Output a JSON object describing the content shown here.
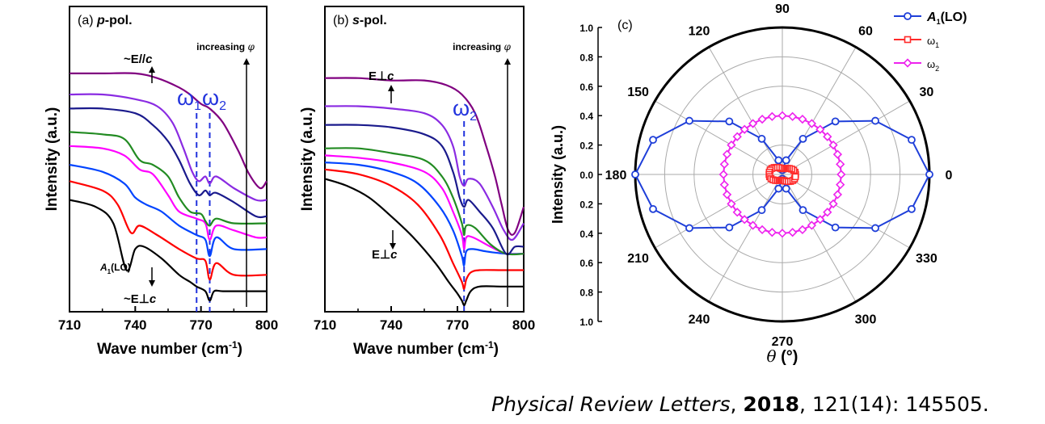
{
  "figure": {
    "citation": {
      "journal": "Physical Review Letters",
      "sep1": ", ",
      "year": "2018",
      "sep2": ", ",
      "rest": "121(14): 145505."
    }
  },
  "chart_data": [
    {
      "id": "a",
      "type": "line",
      "panel_label": "(a)",
      "title": "p-pol.",
      "xlabel": "Wave number (cm",
      "xlabel_sup": "-1",
      "xlabel_end": ")",
      "ylabel": "Intensity (a.u.)",
      "xlim": [
        710,
        800
      ],
      "xticks": [
        710,
        740,
        770,
        800
      ],
      "ylim": [
        0,
        1
      ],
      "yticks_shown": false,
      "vlines": [
        {
          "x": 768,
          "label": "ω",
          "sub": "1",
          "color": "#2233dd"
        },
        {
          "x": 774,
          "label": "ω",
          "sub": "2",
          "color": "#2233dd"
        }
      ],
      "annotations": {
        "top": "~E//c",
        "bottom": "~E⊥c",
        "mode": "A",
        "mode_sub": "1",
        "mode_end": "(LO)",
        "arrow_label": "increasing φ"
      },
      "series_colors": [
        "#000000",
        "#ff0000",
        "#0044ff",
        "#ff00ff",
        "#228b22",
        "#1a1a8c",
        "#8a2be2",
        "#800080"
      ],
      "series": [
        {
          "x": [
            710,
            722,
            730,
            736,
            740,
            744,
            752,
            760,
            765,
            768,
            772,
            774,
            776,
            780,
            790,
            800
          ],
          "y": [
            0.45,
            0.42,
            0.35,
            0.15,
            0.24,
            0.25,
            0.2,
            0.13,
            0.1,
            0.08,
            0.06,
            0.02,
            0.06,
            0.06,
            0.06,
            0.06
          ]
        },
        {
          "x": [
            710,
            725,
            732,
            738,
            742,
            750,
            760,
            768,
            772,
            774,
            777,
            785,
            800
          ],
          "y": [
            0.53,
            0.49,
            0.43,
            0.31,
            0.34,
            0.3,
            0.24,
            0.2,
            0.19,
            0.11,
            0.18,
            0.13,
            0.13
          ]
        },
        {
          "x": [
            710,
            725,
            735,
            740,
            745,
            752,
            760,
            768,
            772,
            774,
            777,
            785,
            800
          ],
          "y": [
            0.6,
            0.57,
            0.52,
            0.46,
            0.43,
            0.4,
            0.34,
            0.3,
            0.28,
            0.21,
            0.29,
            0.24,
            0.24
          ]
        },
        {
          "x": [
            710,
            725,
            735,
            742,
            748,
            755,
            760,
            768,
            772,
            774,
            777,
            785,
            795,
            800
          ],
          "y": [
            0.68,
            0.67,
            0.64,
            0.58,
            0.56,
            0.47,
            0.4,
            0.37,
            0.35,
            0.28,
            0.34,
            0.32,
            0.29,
            0.29
          ]
        },
        {
          "x": [
            710,
            725,
            735,
            742,
            748,
            755,
            760,
            765,
            770,
            772,
            774,
            777,
            785,
            800
          ],
          "y": [
            0.74,
            0.73,
            0.71,
            0.62,
            0.6,
            0.55,
            0.46,
            0.4,
            0.39,
            0.36,
            0.34,
            0.37,
            0.35,
            0.35
          ]
        },
        {
          "x": [
            710,
            725,
            740,
            748,
            755,
            760,
            765,
            769,
            772,
            774,
            777,
            785,
            795,
            800
          ],
          "y": [
            0.84,
            0.84,
            0.82,
            0.77,
            0.7,
            0.62,
            0.52,
            0.47,
            0.49,
            0.47,
            0.48,
            0.44,
            0.38,
            0.38
          ]
        },
        {
          "x": [
            710,
            725,
            740,
            750,
            757,
            762,
            766,
            769,
            772,
            774,
            777,
            785,
            795,
            800
          ],
          "y": [
            0.9,
            0.9,
            0.88,
            0.85,
            0.78,
            0.67,
            0.57,
            0.53,
            0.55,
            0.52,
            0.55,
            0.5,
            0.45,
            0.45
          ]
        },
        {
          "x": [
            710,
            725,
            740,
            750,
            760,
            765,
            770,
            774,
            780,
            787,
            792,
            797,
            800
          ],
          "y": [
            0.99,
            0.99,
            0.99,
            0.97,
            0.93,
            0.9,
            0.86,
            0.84,
            0.78,
            0.66,
            0.56,
            0.5,
            0.53
          ]
        }
      ]
    },
    {
      "id": "b",
      "type": "line",
      "panel_label": "(b)",
      "title": "s-pol.",
      "xlabel": "Wave number (cm",
      "xlabel_sup": "-1",
      "xlabel_end": ")",
      "ylabel": "Intensity (a.u.)",
      "xlim": [
        710,
        800
      ],
      "xticks": [
        710,
        740,
        770,
        800
      ],
      "ylim": [
        0,
        1
      ],
      "yticks_shown": false,
      "vlines": [
        {
          "x": 773,
          "label": "ω",
          "sub": "2",
          "color": "#2233dd"
        }
      ],
      "annotations": {
        "top": "E⊥c",
        "bottom": "E⊥c",
        "arrow_label": "increasing φ"
      },
      "series_colors": [
        "#000000",
        "#ff0000",
        "#0044ff",
        "#ff00ff",
        "#228b22",
        "#1a1a8c",
        "#8a2be2",
        "#800080"
      ],
      "series": [
        {
          "x": [
            710,
            720,
            730,
            740,
            750,
            760,
            766,
            770,
            772,
            773,
            774,
            776,
            780,
            790,
            800
          ],
          "y": [
            0.54,
            0.51,
            0.46,
            0.38,
            0.29,
            0.18,
            0.1,
            0.05,
            0.02,
            0.0,
            0.02,
            0.06,
            0.08,
            0.08,
            0.08
          ]
        },
        {
          "x": [
            710,
            725,
            740,
            752,
            762,
            768,
            772,
            773,
            774,
            776,
            780,
            790,
            800
          ],
          "y": [
            0.58,
            0.56,
            0.51,
            0.43,
            0.3,
            0.18,
            0.1,
            0.07,
            0.11,
            0.14,
            0.15,
            0.15,
            0.15
          ]
        },
        {
          "x": [
            710,
            725,
            740,
            752,
            762,
            768,
            772,
            773,
            774,
            777,
            783,
            792,
            800
          ],
          "y": [
            0.61,
            0.6,
            0.57,
            0.52,
            0.42,
            0.32,
            0.21,
            0.17,
            0.23,
            0.24,
            0.23,
            0.22,
            0.22
          ]
        },
        {
          "x": [
            710,
            725,
            740,
            755,
            763,
            768,
            772,
            773,
            774,
            777,
            785,
            792,
            800
          ],
          "y": [
            0.64,
            0.63,
            0.61,
            0.57,
            0.5,
            0.4,
            0.3,
            0.24,
            0.29,
            0.29,
            0.25,
            0.22,
            0.22
          ]
        },
        {
          "x": [
            710,
            725,
            740,
            755,
            763,
            768,
            772,
            773,
            774,
            778,
            785,
            792,
            800
          ],
          "y": [
            0.67,
            0.67,
            0.65,
            0.62,
            0.55,
            0.46,
            0.35,
            0.3,
            0.34,
            0.33,
            0.26,
            0.22,
            0.22
          ]
        },
        {
          "x": [
            710,
            725,
            740,
            755,
            763,
            768,
            771,
            773,
            775,
            780,
            786,
            792,
            796,
            800
          ],
          "y": [
            0.77,
            0.77,
            0.76,
            0.73,
            0.68,
            0.57,
            0.46,
            0.42,
            0.45,
            0.4,
            0.33,
            0.22,
            0.25,
            0.25
          ]
        },
        {
          "x": [
            710,
            725,
            740,
            755,
            763,
            768,
            771,
            773,
            775,
            780,
            786,
            791,
            795,
            800
          ],
          "y": [
            0.85,
            0.85,
            0.84,
            0.82,
            0.77,
            0.68,
            0.55,
            0.51,
            0.54,
            0.52,
            0.42,
            0.32,
            0.28,
            0.35
          ]
        },
        {
          "x": [
            710,
            725,
            740,
            755,
            765,
            772,
            778,
            783,
            787,
            790,
            793,
            796,
            800
          ],
          "y": [
            0.97,
            0.97,
            0.96,
            0.96,
            0.94,
            0.9,
            0.82,
            0.68,
            0.55,
            0.43,
            0.32,
            0.31,
            0.42
          ]
        }
      ]
    },
    {
      "id": "c",
      "type": "polar",
      "panel_label": "(c)",
      "xlabel": "θ (°)",
      "ylabel": "Intensity (a.u.)",
      "rlim": [
        0,
        1.0
      ],
      "rticks": [
        "0.0",
        "0.2",
        "0.4",
        "0.6",
        "0.8",
        "1.0"
      ],
      "angle_labels": [
        "0",
        "30",
        "60",
        "90",
        "120",
        "150",
        "180",
        "210",
        "240",
        "270",
        "300",
        "330"
      ],
      "legend": [
        {
          "name": "A",
          "sub": "1",
          "end": "(LO)",
          "color": "#1f3fd9",
          "marker": "circle"
        },
        {
          "name": "ω",
          "sub": "1",
          "end": "",
          "color": "#ff2a2a",
          "marker": "square"
        },
        {
          "name": "ω",
          "sub": "2",
          "end": "",
          "color": "#ee22ee",
          "marker": "diamond"
        }
      ],
      "series": [
        {
          "name": "A1(LO)",
          "color": "#1f3fd9",
          "marker": "circle",
          "angle_step": 15,
          "model": "0.97·cos²θ + 0.03",
          "r": [
            1.0,
            0.91,
            0.73,
            0.51,
            0.28,
            0.1,
            0.03,
            0.1,
            0.28,
            0.51,
            0.73,
            0.91,
            1.0,
            0.91,
            0.73,
            0.51,
            0.28,
            0.1,
            0.03,
            0.1,
            0.28,
            0.51,
            0.73,
            0.91
          ]
        },
        {
          "name": "ω1",
          "color": "#ff2a2a",
          "marker": "square",
          "angle_step": 10,
          "model": "≈0.04–0.09",
          "r": [
            0.09,
            0.088,
            0.082,
            0.073,
            0.063,
            0.054,
            0.047,
            0.042,
            0.04,
            0.04,
            0.042,
            0.047,
            0.054,
            0.063,
            0.073,
            0.082,
            0.088,
            0.09,
            0.09,
            0.088,
            0.082,
            0.073,
            0.063,
            0.054,
            0.047,
            0.042,
            0.04,
            0.04,
            0.042,
            0.047,
            0.054,
            0.063,
            0.073,
            0.082,
            0.088,
            0.09
          ]
        },
        {
          "name": "ω2",
          "color": "#ee22ee",
          "marker": "diamond",
          "angle_step": 10,
          "model": "≈0.40 constant",
          "r": [
            0.4,
            0.4,
            0.4,
            0.4,
            0.4,
            0.4,
            0.4,
            0.4,
            0.4,
            0.4,
            0.4,
            0.4,
            0.4,
            0.4,
            0.4,
            0.4,
            0.4,
            0.4,
            0.4,
            0.4,
            0.4,
            0.4,
            0.4,
            0.4,
            0.4,
            0.4,
            0.4,
            0.4,
            0.4,
            0.4,
            0.4,
            0.4,
            0.4,
            0.4,
            0.4,
            0.4
          ]
        }
      ]
    }
  ]
}
